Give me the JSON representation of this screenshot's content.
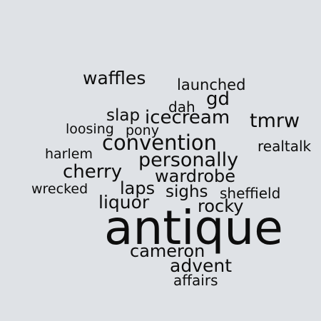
{
  "words": {
    "antique": "antique",
    "convention": "convention",
    "personally": "personally",
    "cherry": "cherry",
    "waffles": "waffles",
    "icecream": "icecream",
    "tmrw": "tmrw",
    "gd": "gd",
    "liquor": "liquor",
    "laps": "laps",
    "wardrobe": "wardrobe",
    "sighs": "sighs",
    "rocky": "rocky",
    "cameron": "cameron",
    "advent": "advent",
    "slap": "slap",
    "affairs": "affairs",
    "launched": "launched",
    "dah": "dah",
    "loosing": "loosing",
    "pony": "pony",
    "harlem": "harlem",
    "realtalk": "realtalk",
    "wrecked": "wrecked",
    "sheffield": "sheffield"
  },
  "colors": {
    "background": "#dfe2e6",
    "text": "#0d0d0d"
  }
}
